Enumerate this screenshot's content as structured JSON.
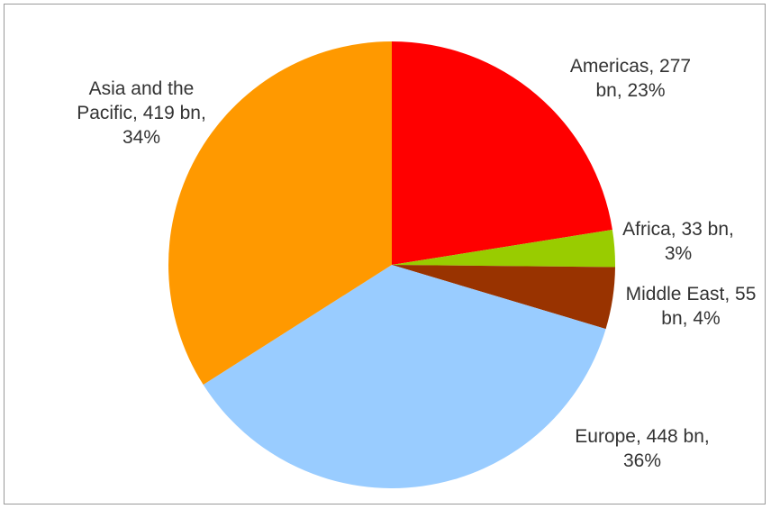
{
  "chart_data": {
    "type": "pie",
    "title": "",
    "slices": [
      {
        "name": "Americas",
        "value": 277,
        "unit": "bn",
        "percent": 23,
        "color": "#ff0000",
        "label_lines": [
          "Americas, 277",
          "bn, 23%"
        ]
      },
      {
        "name": "Africa",
        "value": 33,
        "unit": "bn",
        "percent": 3,
        "color": "#99cc00",
        "label_lines": [
          "Africa, 33 bn,",
          "3%"
        ]
      },
      {
        "name": "Middle East",
        "value": 55,
        "unit": "bn",
        "percent": 4,
        "color": "#993300",
        "label_lines": [
          "Middle East, 55",
          "bn, 4%"
        ]
      },
      {
        "name": "Europe",
        "value": 448,
        "unit": "bn",
        "percent": 36,
        "color": "#99ccff",
        "label_lines": [
          "Europe, 448 bn,",
          "36%"
        ]
      },
      {
        "name": "Asia and the Pacific",
        "value": 419,
        "unit": "bn",
        "percent": 34,
        "color": "#ff9900",
        "label_lines": [
          "Asia and the",
          "Pacific, 419 bn,",
          "34%"
        ]
      }
    ],
    "start_angle": "12 o'clock",
    "direction": "clockwise",
    "legend": "none"
  }
}
